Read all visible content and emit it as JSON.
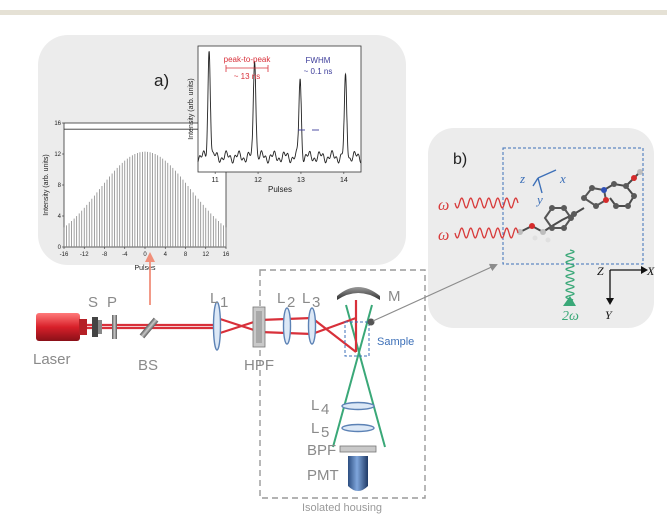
{
  "colors": {
    "top_bar": "#e5e1d5",
    "panel_bg": "#ececec",
    "laser_beam": "#d8303a",
    "shg_beam": "#3aa878",
    "omega_color": "#d83a3a",
    "axis_blue": "#3d70b8",
    "label_gray": "#8a8a8a",
    "optic_blue": "#5c82b5"
  },
  "panel_a": {
    "label": "a)",
    "main_plot": {
      "xlabel": "Pulses",
      "ylabel": "Intensity (arb. units)",
      "x_ticks": [
        "-16",
        "-12",
        "-8",
        "-4",
        "0",
        "4",
        "8",
        "12",
        "16"
      ],
      "y_ticks": [
        "0",
        "4",
        "8",
        "12",
        "16"
      ]
    },
    "inset_plot": {
      "xlabel": "Pulses",
      "ylabel": "Intensity (arb. units)",
      "x_ticks": [
        "11",
        "12",
        "13",
        "14"
      ],
      "peak_to_peak_label": "peak-to-peak",
      "peak_to_peak_value": "~ 13 ns",
      "fwhm_label": "FWHM",
      "fwhm_value": "~ 0.1 ns"
    }
  },
  "panel_b": {
    "label": "b)",
    "omega_1": "ω",
    "omega_2": "ω",
    "two_omega": "2ω",
    "mol_axes": {
      "x": "x",
      "y": "y",
      "z": "z"
    },
    "lab_axes": {
      "x": "X",
      "y": "Y",
      "z": "Z"
    }
  },
  "setup": {
    "laser": "Laser",
    "s": "S",
    "p": "P",
    "bs": "BS",
    "l1": "L",
    "l1_sub": "1",
    "l2": "L",
    "l2_sub": "2",
    "l3": "L",
    "l3_sub": "3",
    "hpf": "HPF",
    "m": "M",
    "sample": "Sample",
    "l4": "L",
    "l4_sub": "4",
    "l5": "L",
    "l5_sub": "5",
    "bpf": "BPF",
    "pmt": "PMT",
    "housing": "Isolated housing"
  }
}
